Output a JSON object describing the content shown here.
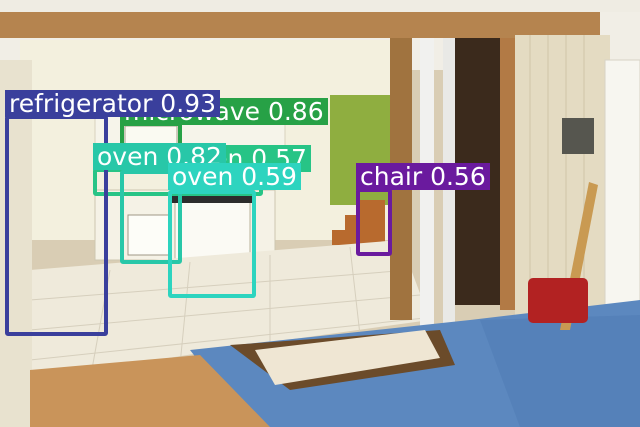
{
  "image": {
    "description_colors": {
      "ceiling": "#f4f1ea",
      "kitchen_wall": "#f3f0df",
      "green_wall": "#8ca83c",
      "floor_tile": "#f2eee2",
      "stud_wood": "#9a6b3c",
      "blue_subfloor": "#5a86bd",
      "hardwood": "#c8955a",
      "paneling": "#e6ddc6"
    }
  },
  "detections": [
    {
      "label": "microwave",
      "score": "0.86",
      "text": "microwave 0.86",
      "color": "#27a146"
    },
    {
      "label": "oven",
      "score": "0.57",
      "text": "oven 0.57",
      "color": "#27c486"
    },
    {
      "label": "oven",
      "score": "0.82",
      "text": "oven 0.82",
      "color": "#28c7a8"
    },
    {
      "label": "oven",
      "score": "0.59",
      "text": "oven 0.59",
      "color": "#2dd4bf"
    },
    {
      "label": "refrigerator",
      "score": "0.93",
      "text": "refrigerator 0.93",
      "color": "#3a3f9c"
    },
    {
      "label": "chair",
      "score": "0.56",
      "text": "chair 0.56",
      "color": "#6a1a9e"
    }
  ]
}
